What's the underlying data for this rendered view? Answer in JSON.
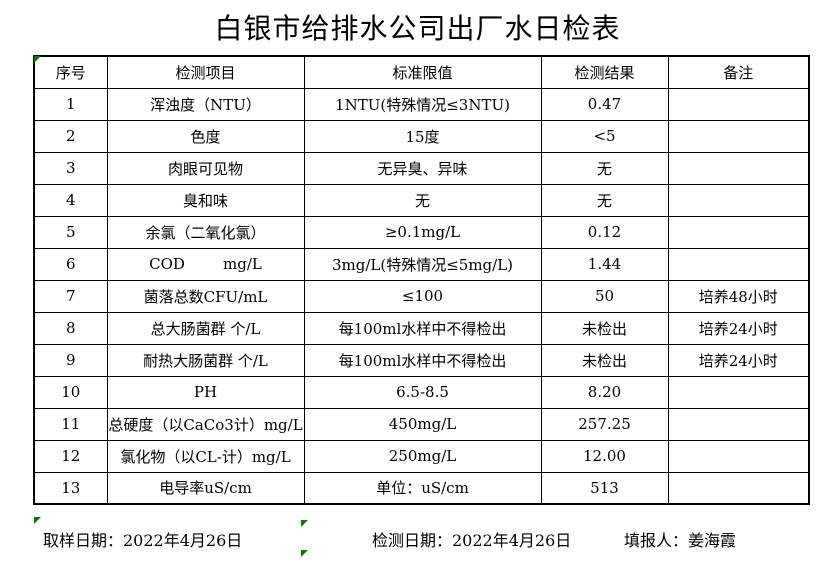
{
  "title": "白银市给排水公司出厂水日检表",
  "table": {
    "headers": [
      "序号",
      "检测项目",
      "标准限值",
      "检测结果",
      "备注"
    ],
    "rows": [
      {
        "no": "1",
        "item": "浑浊度（NTU）",
        "limit": "1NTU(特殊情况≤3NTU)",
        "result": "0.47",
        "note": ""
      },
      {
        "no": "2",
        "item": "色度",
        "limit": "15度",
        "result": "<5",
        "note": ""
      },
      {
        "no": "3",
        "item": "肉眼可见物",
        "limit": "无异臭、异味",
        "result": "无",
        "note": ""
      },
      {
        "no": "4",
        "item": "臭和味",
        "limit": "无",
        "result": "无",
        "note": ""
      },
      {
        "no": "5",
        "item": "余氯（二氧化氯）",
        "limit": "≥0.1mg/L",
        "result": "0.12",
        "note": ""
      },
      {
        "no": "6",
        "item": "COD        mg/L",
        "limit": "3mg/L(特殊情况≤5mg/L)",
        "result": "1.44",
        "note": ""
      },
      {
        "no": "7",
        "item": "菌落总数CFU/mL",
        "limit": "≤100",
        "result": "50",
        "note": "培养48小时"
      },
      {
        "no": "8",
        "item": "总大肠菌群 个/L",
        "limit": "每100ml水样中不得检出",
        "result": "未检出",
        "note": "培养24小时"
      },
      {
        "no": "9",
        "item": "耐热大肠菌群 个/L",
        "limit": "每100ml水样中不得检出",
        "result": "未检出",
        "note": "培养24小时"
      },
      {
        "no": "10",
        "item": "PH",
        "limit": "6.5-8.5",
        "result": "8.20",
        "note": ""
      },
      {
        "no": "11",
        "item": "总硬度（以CaCo3计）mg/L",
        "limit": "450mg/L",
        "result": "257.25",
        "note": ""
      },
      {
        "no": "12",
        "item": "氯化物（以CL-计）mg/L",
        "limit": "250mg/L",
        "result": "12.00",
        "note": ""
      },
      {
        "no": "13",
        "item": "电导率uS/cm",
        "limit": "单位：uS/cm",
        "result": "513",
        "note": ""
      }
    ]
  },
  "footer": {
    "sampling_date": "取样日期：2022年4月26日",
    "test_date": "检测日期：2022年4月26日",
    "reporter": "填报人：姜海霞"
  },
  "colors": {
    "border": "#000000",
    "background": "#ffffff",
    "cell_flag_green": "#008000"
  }
}
